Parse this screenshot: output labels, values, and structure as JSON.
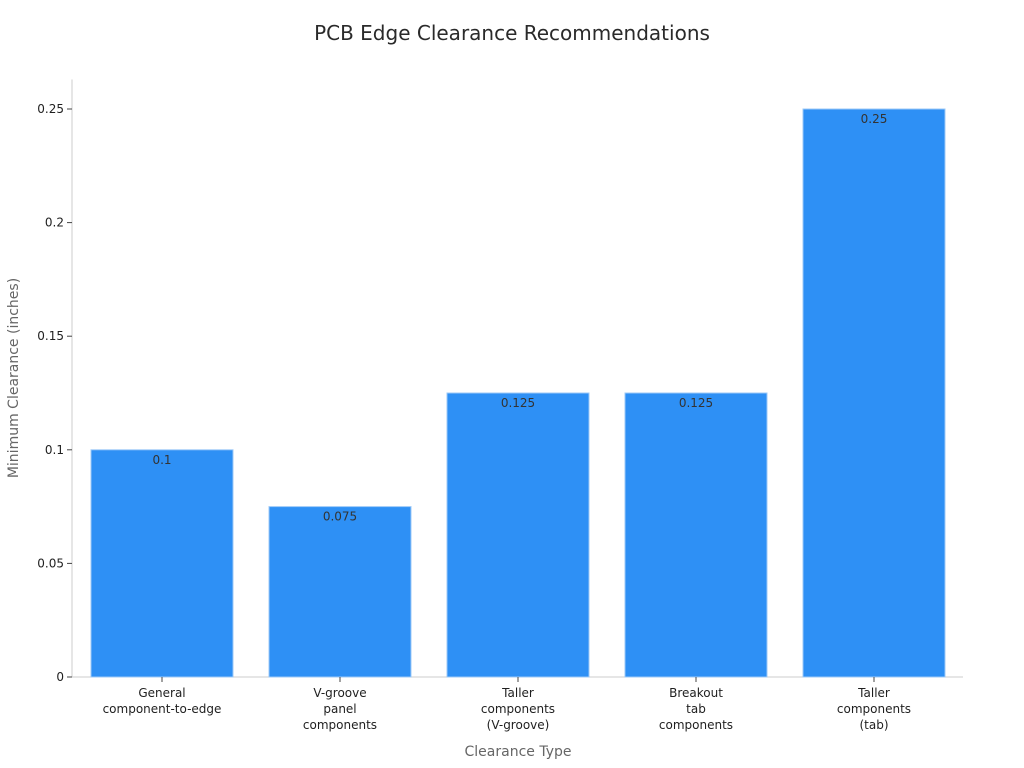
{
  "chart_data": {
    "type": "bar",
    "title": "PCB Edge Clearance Recommendations",
    "xlabel": "Clearance Type",
    "ylabel": "Minimum Clearance (inches)",
    "categories": [
      [
        "General",
        "component-to-edge"
      ],
      [
        "V-groove",
        "panel",
        "components"
      ],
      [
        "Taller",
        "components",
        "(V-groove)"
      ],
      [
        "Breakout",
        "tab",
        "components"
      ],
      [
        "Taller",
        "components",
        "(tab)"
      ]
    ],
    "values": [
      0.1,
      0.075,
      0.125,
      0.125,
      0.25
    ],
    "data_labels": [
      "0.1",
      "0.075",
      "0.125",
      "0.125",
      "0.25"
    ],
    "ylim": [
      0,
      0.263
    ],
    "yticks": [
      0,
      0.05,
      0.1,
      0.15,
      0.2,
      0.25
    ],
    "ytick_labels": [
      "0",
      "0.05",
      "0.1",
      "0.15",
      "0.2",
      "0.25"
    ],
    "grid": false,
    "legend": "none",
    "colors": {
      "bar_fill": "#2e90f5",
      "bar_stroke": "#9cc9f7",
      "axis": "#cccccc",
      "text": "#333333"
    }
  }
}
